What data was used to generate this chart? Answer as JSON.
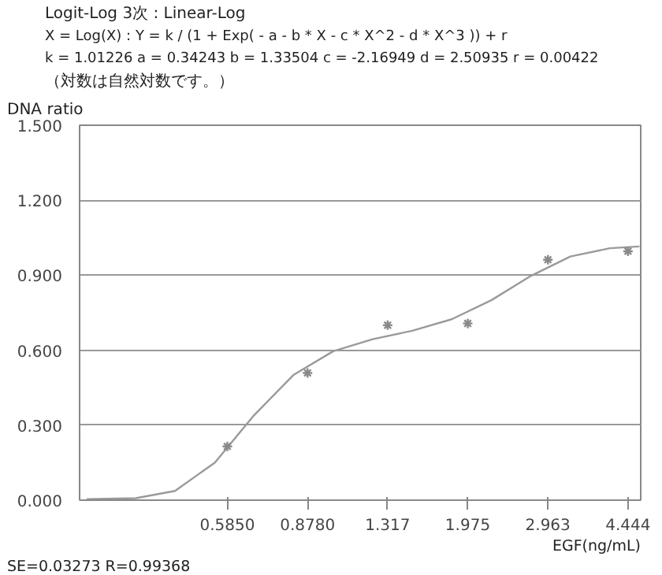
{
  "chart_data": {
    "type": "scatter",
    "title": "Logit-Log 3次 :  Linear-Log",
    "annotations": [
      "X = Log(X) : Y = k / (1 + Exp( - a - b * X - c * X^2 - d * X^3 )) + r",
      "k = 1.01226  a = 0.34243  b = 1.33504  c = -2.16949  d = 2.50935  r = 0.00422",
      "（対数は自然対数です。）",
      "SE=0.03273    R=0.99368"
    ],
    "xlabel": "EGF(ng/mL)",
    "ylabel": "DNA ratio",
    "log": "x",
    "grid": "y",
    "xlim": [
      0.277,
      4.74
    ],
    "ylim": [
      0,
      1.5
    ],
    "xticks": [
      {
        "value": 0.585,
        "label": "0.5850"
      },
      {
        "value": 0.878,
        "label": "0.8780"
      },
      1.317,
      1.975,
      2.963,
      4.444
    ],
    "yticks": [
      {
        "value": 0,
        "label": "0.000"
      },
      {
        "value": 0.3,
        "label": "0.300"
      },
      {
        "value": 0.6,
        "label": "0.600"
      },
      {
        "value": 0.9,
        "label": "0.900"
      },
      {
        "value": 1.2,
        "label": "1.200"
      },
      {
        "value": 1.5,
        "label": "1.500"
      }
    ],
    "series": [
      {
        "type": "line",
        "color": "#9a9a9a",
        "marker": "none",
        "x": [
          0.287,
          0.368,
          0.449,
          0.549,
          0.67,
          0.819,
          1.0,
          1.221,
          1.492,
          1.822,
          2.226,
          2.718,
          3.32,
          4.055,
          4.71
        ],
        "values": [
          0.004,
          0.008,
          0.037,
          0.15,
          0.34,
          0.502,
          0.596,
          0.644,
          0.678,
          0.724,
          0.8,
          0.897,
          0.975,
          1.008,
          1.015
        ]
      },
      {
        "color": "#8a8a8a",
        "marker": "cross",
        "x": [
          0.585,
          0.878,
          1.317,
          1.975,
          2.963,
          4.444
        ],
        "values": [
          0.215,
          0.509,
          0.7,
          0.707,
          0.962,
          0.996
        ]
      }
    ]
  }
}
